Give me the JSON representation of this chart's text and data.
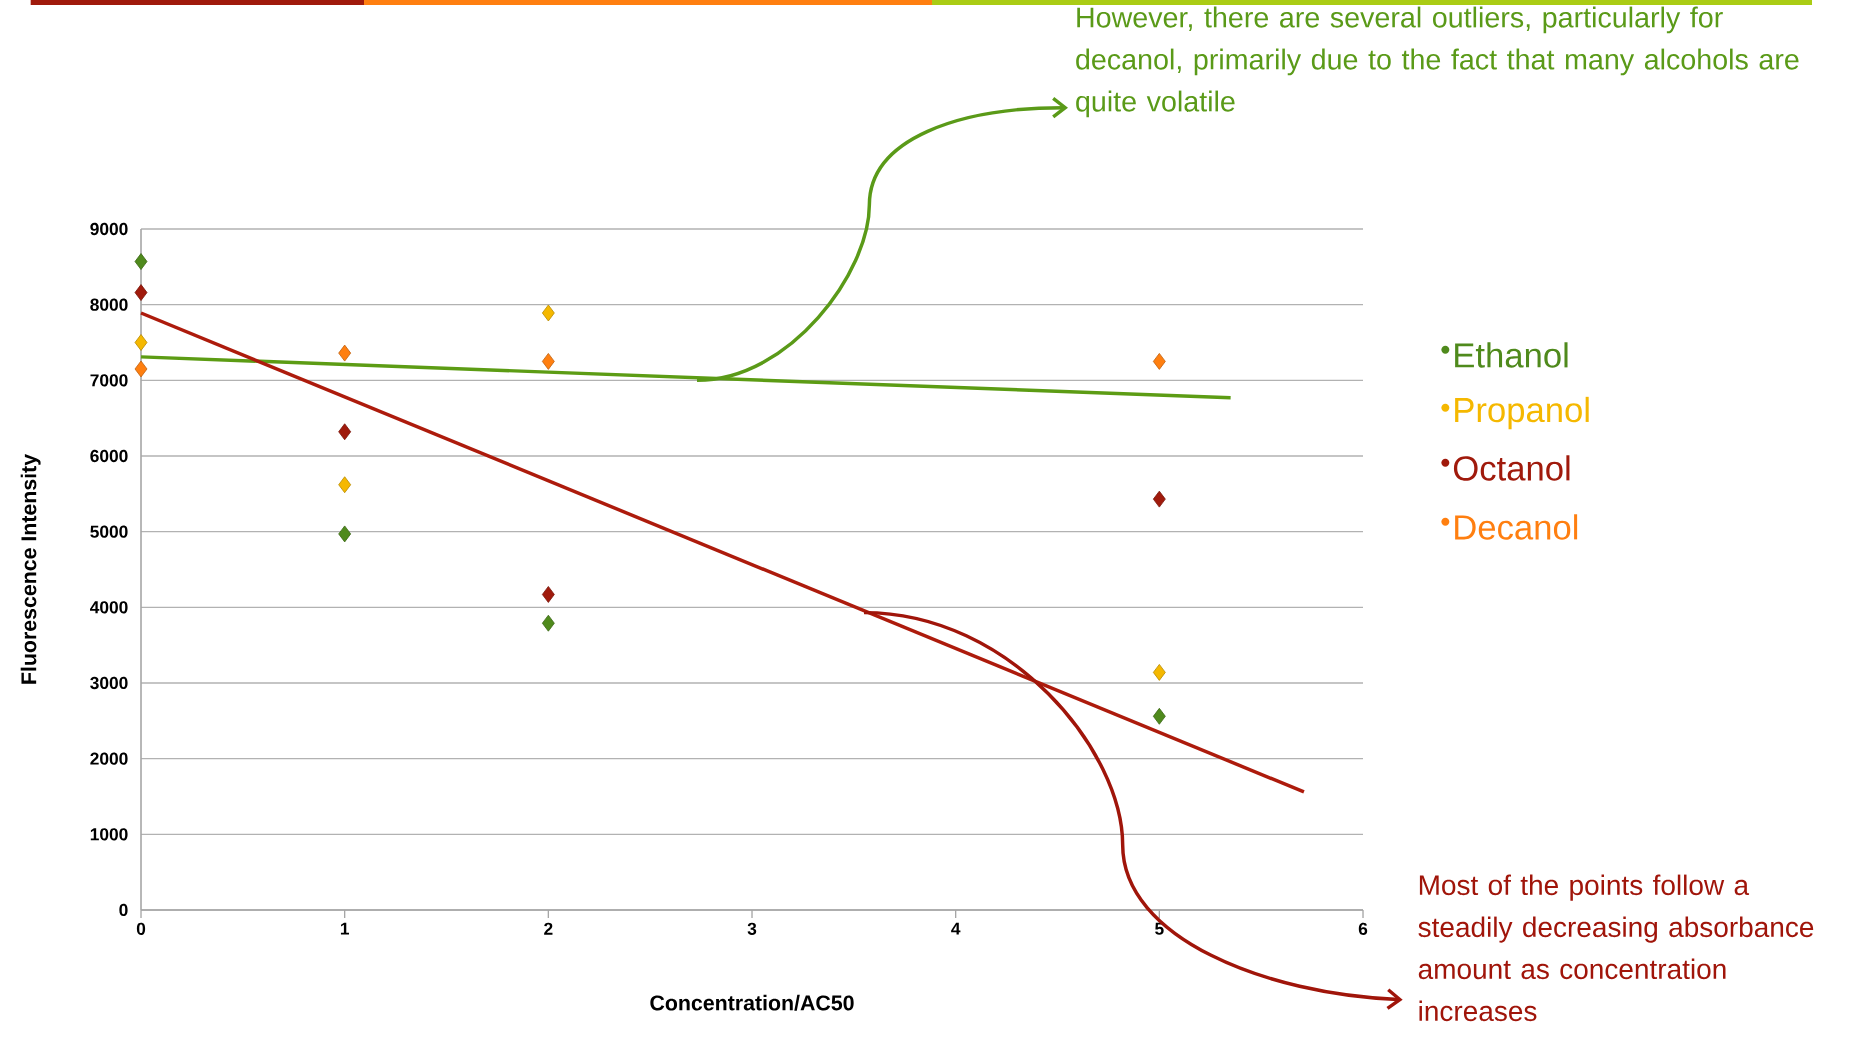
{
  "chart_data": {
    "type": "scatter",
    "xlabel": "Concentration/AC50",
    "ylabel": "Fluorescence Intensity",
    "xlim": [
      0,
      6
    ],
    "ylim": [
      0,
      9000
    ],
    "xticks": [
      0,
      1,
      2,
      3,
      4,
      5,
      6
    ],
    "yticks": [
      0,
      1000,
      2000,
      3000,
      4000,
      5000,
      6000,
      7000,
      8000,
      9000
    ],
    "grid": "y",
    "legend": "right",
    "marker": "diamond",
    "series": [
      {
        "name": "Ethanol",
        "color": "#4f8a1c",
        "x": [
          0,
          1,
          2,
          5
        ],
        "values": [
          8570,
          4970,
          3790,
          2560
        ]
      },
      {
        "name": "Propanol",
        "color": "#f5b800",
        "x": [
          0,
          1,
          2,
          5
        ],
        "values": [
          7500,
          5620,
          7890,
          3140
        ]
      },
      {
        "name": "Octanol",
        "color": "#a01a0c",
        "x": [
          0,
          1,
          2,
          5
        ],
        "values": [
          8160,
          6320,
          4170,
          5430
        ]
      },
      {
        "name": "Decanol",
        "color": "#ff7f10",
        "x": [
          0,
          1,
          2,
          5
        ],
        "values": [
          7150,
          7360,
          7250,
          7250
        ]
      },
      {
        "type": "line",
        "marker": "none",
        "color": "#5c9c14",
        "x": [
          0,
          5.35
        ],
        "values": [
          7310,
          6770
        ]
      },
      {
        "type": "line",
        "marker": "none",
        "color": "#ad1b0c",
        "x": [
          0,
          5.71
        ],
        "values": [
          7890,
          1560
        ]
      }
    ],
    "annotations": [
      {
        "text": "However, there are several outliers, particularly for decanol, primarily due to the fact that many alcohols are quite volatile",
        "x": 2.73,
        "y": 7000
      },
      {
        "text": "Most of the points follow a steadily decreasing absorbance amount as concentration increases",
        "x": 3.55,
        "y": 3930
      }
    ]
  }
}
